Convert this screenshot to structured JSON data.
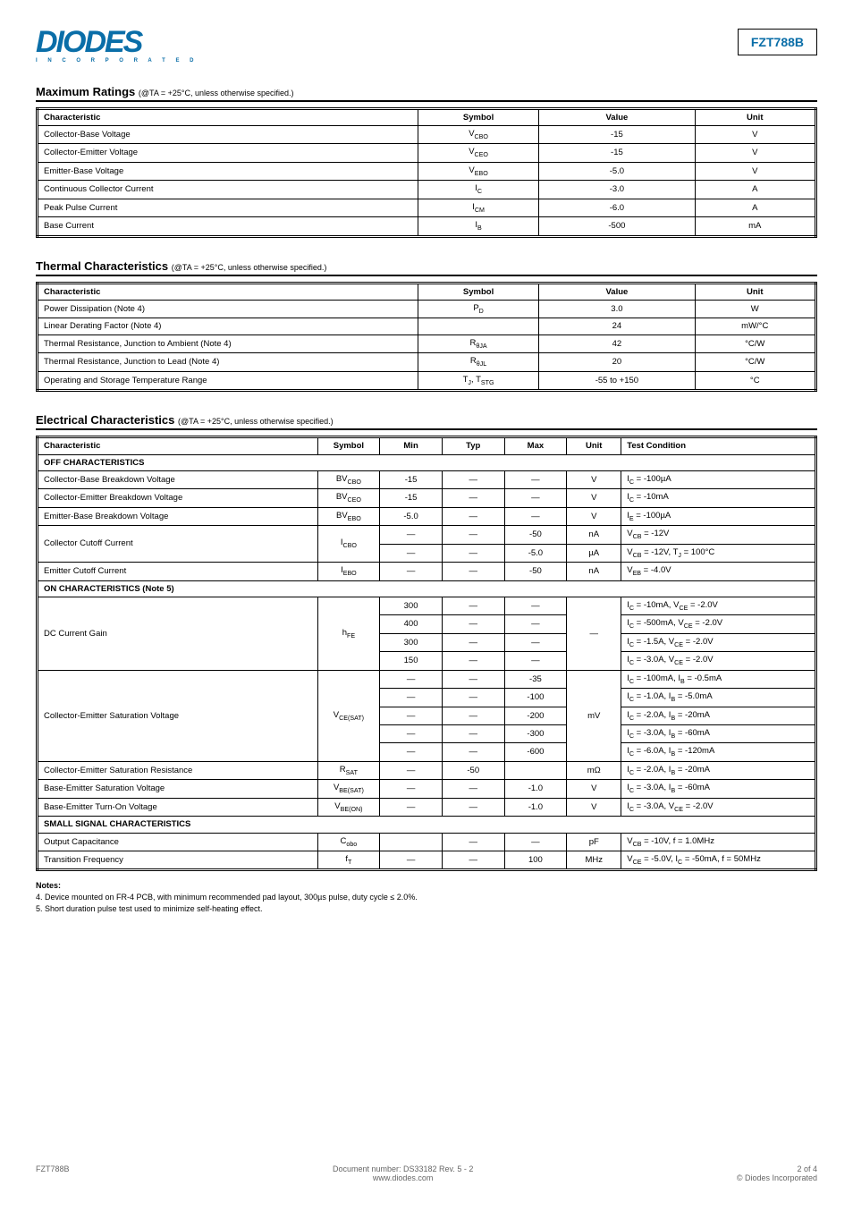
{
  "header": {
    "logo_text": "DIODES",
    "logo_sub": "I N C O R P O R A T E D",
    "part_number": "FZT788B"
  },
  "ratings": {
    "title": "Maximum Ratings",
    "subtitle": "(@TA = +25°C, unless otherwise specified.)",
    "columns": [
      "Characteristic",
      "Symbol",
      "Value",
      "Unit"
    ],
    "col_widths": [
      "44%",
      "14%",
      "18%",
      "14%"
    ],
    "border_color": "#000000",
    "background_color": "#ffffff",
    "font_size": 9.5,
    "rows": [
      [
        "Collector-Base Voltage",
        "V_CBO",
        "-15",
        "V"
      ],
      [
        "Collector-Emitter Voltage",
        "V_CEO",
        "-15",
        "V"
      ],
      [
        "Emitter-Base Voltage",
        "V_EBO",
        "-5.0",
        "V"
      ],
      [
        "Continuous Collector Current",
        "I_C",
        "-3.0",
        "A"
      ],
      [
        "Peak Pulse Current",
        "I_CM",
        "-6.0",
        "A"
      ],
      [
        "Base Current",
        "I_B",
        "-500",
        "mA"
      ]
    ]
  },
  "thermal": {
    "title": "Thermal Characteristics",
    "subtitle": "(@TA = +25°C, unless otherwise specified.)",
    "columns": [
      "Characteristic",
      "Symbol",
      "Value",
      "Unit"
    ],
    "rows": [
      [
        "Power Dissipation (Note 4)",
        "P_D",
        "3.0",
        "W"
      ],
      [
        "Linear Derating Factor (Note 4)",
        "",
        "24",
        "mW/°C"
      ],
      [
        "Thermal Resistance, Junction to Ambient (Note 4)",
        "R_θJA",
        "42",
        "°C/W"
      ],
      [
        "Thermal Resistance, Junction to Lead (Note 4)",
        "R_θJL",
        "20",
        "°C/W"
      ],
      [
        "Operating and Storage Temperature Range",
        "T_J, T_STG",
        "-55 to +150",
        "°C"
      ]
    ]
  },
  "electrical": {
    "title": "Electrical Characteristics",
    "subtitle": "(@TA = +25°C, unless otherwise specified.)",
    "columns": [
      "Characteristic",
      "Symbol",
      "Min",
      "Typ",
      "Max",
      "Unit",
      "Test Condition"
    ],
    "sections": [
      {
        "name": "OFF CHARACTERISTICS",
        "rows": [
          {
            "char": "Collector-Base Breakdown Voltage",
            "sym": "BV_CBO",
            "min": "-15",
            "typ": "—",
            "max": "—",
            "unit": "V",
            "cond": "I_C = -100µA"
          },
          {
            "char": "Collector-Emitter Breakdown Voltage",
            "sym": "BV_CEO",
            "min": "-15",
            "typ": "—",
            "max": "—",
            "unit": "V",
            "cond": "I_C = -10mA"
          },
          {
            "char": "Emitter-Base Breakdown Voltage",
            "sym": "BV_EBO",
            "min": "-5.0",
            "typ": "—",
            "max": "—",
            "unit": "V",
            "cond": "I_E = -100µA"
          },
          {
            "char": "Collector Cutoff Current",
            "sym": "I_CBO",
            "rowspan": 2,
            "rows": [
              {
                "min": "—",
                "typ": "—",
                "max": "-50",
                "unit": "nA",
                "cond": "V_CB = -12V"
              },
              {
                "min": "—",
                "typ": "—",
                "max": "-5.0",
                "unit": "µA",
                "cond": "V_CB = -12V, T_J = 100°C"
              }
            ]
          },
          {
            "char": "Emitter Cutoff Current",
            "sym": "I_EBO",
            "min": "—",
            "typ": "—",
            "max": "-50",
            "unit": "nA",
            "cond": "V_EB = -4.0V"
          }
        ]
      },
      {
        "name": "ON CHARACTERISTICS (Note 5)",
        "rows": [
          {
            "char": "DC Current Gain",
            "sym": "h_FE",
            "rowspan": 4,
            "unitspan": "—",
            "rows": [
              {
                "min": "300",
                "typ": "—",
                "max": "—",
                "cond": "I_C = -10mA, V_CE = -2.0V"
              },
              {
                "min": "400",
                "typ": "—",
                "max": "—",
                "cond": "I_C = -500mA, V_CE = -2.0V"
              },
              {
                "min": "300",
                "typ": "—",
                "max": "—",
                "cond": "I_C = -1.5A, V_CE = -2.0V"
              },
              {
                "min": "150",
                "typ": "—",
                "max": "—",
                "cond": "I_C = -3.0A, V_CE = -2.0V"
              }
            ]
          },
          {
            "char": "Collector-Emitter Saturation Voltage",
            "sym": "V_CE(SAT)",
            "rowspan": 5,
            "unitspan": "mV",
            "rows": [
              {
                "min": "—",
                "typ": "—",
                "max": "-35",
                "cond": "I_C = -100mA, I_B = -0.5mA"
              },
              {
                "min": "—",
                "typ": "—",
                "max": "-100",
                "cond": "I_C = -1.0A, I_B = -5.0mA"
              },
              {
                "min": "—",
                "typ": "—",
                "max": "-200",
                "cond": "I_C = -2.0A, I_B = -20mA"
              },
              {
                "min": "—",
                "typ": "—",
                "max": "-300",
                "cond": "I_C = -3.0A, I_B = -60mA"
              },
              {
                "min": "—",
                "typ": "—",
                "max": "-600",
                "cond": "I_C = -6.0A, I_B = -120mA"
              }
            ]
          },
          {
            "char": "Collector-Emitter Saturation Resistance",
            "sym": "R_SAT",
            "min": "—",
            "typ": "-50",
            "max": "",
            "unit": "mΩ",
            "cond": "I_C = -2.0A, I_B = -20mA"
          },
          {
            "char": "Base-Emitter Saturation Voltage",
            "sym": "V_BE(SAT)",
            "min": "—",
            "typ": "—",
            "max": "-1.0",
            "unit": "V",
            "cond": "I_C = -3.0A, I_B = -60mA"
          },
          {
            "char": "Base-Emitter Turn-On Voltage",
            "sym": "V_BE(ON)",
            "min": "—",
            "typ": "—",
            "max": "-1.0",
            "unit": "V",
            "cond": "I_C = -3.0A, V_CE = -2.0V"
          }
        ]
      },
      {
        "name": "SMALL SIGNAL CHARACTERISTICS",
        "rows": [
          {
            "char": "Output Capacitance",
            "sym": "C_obo",
            "min": "",
            "typ": "—",
            "max": "—",
            "unit": "pF",
            "cond": "V_CB = -10V, f = 1.0MHz"
          },
          {
            "char": "Transition Frequency",
            "sym": "f_T",
            "min": "—",
            "typ": "—",
            "max": "100",
            "unit": "MHz",
            "cond": "V_CE = -5.0V, I_C = -50mA, f = 50MHz"
          }
        ]
      }
    ]
  },
  "notes": {
    "n4": "4.  Device mounted on FR-4 PCB, with minimum recommended pad layout, 300µs pulse, duty cycle ≤ 2.0%.",
    "n5": "5.  Short duration pulse test used to minimize self-heating effect."
  },
  "footer": {
    "left": "FZT788B",
    "mid_line1": "Document number: DS33182 Rev. 5 - 2",
    "mid_line2": "www.diodes.com",
    "right_line1": "2 of 4",
    "right_line2": "© Diodes Incorporated"
  },
  "style": {
    "background_color": "#ffffff",
    "text_color": "#000000",
    "accent_color": "#0a6ea8",
    "grid_color": "#000000",
    "font_family": "Arial",
    "base_fontsize": 10,
    "section_title_fontsize": 13,
    "subtitle_fontsize": 9
  }
}
